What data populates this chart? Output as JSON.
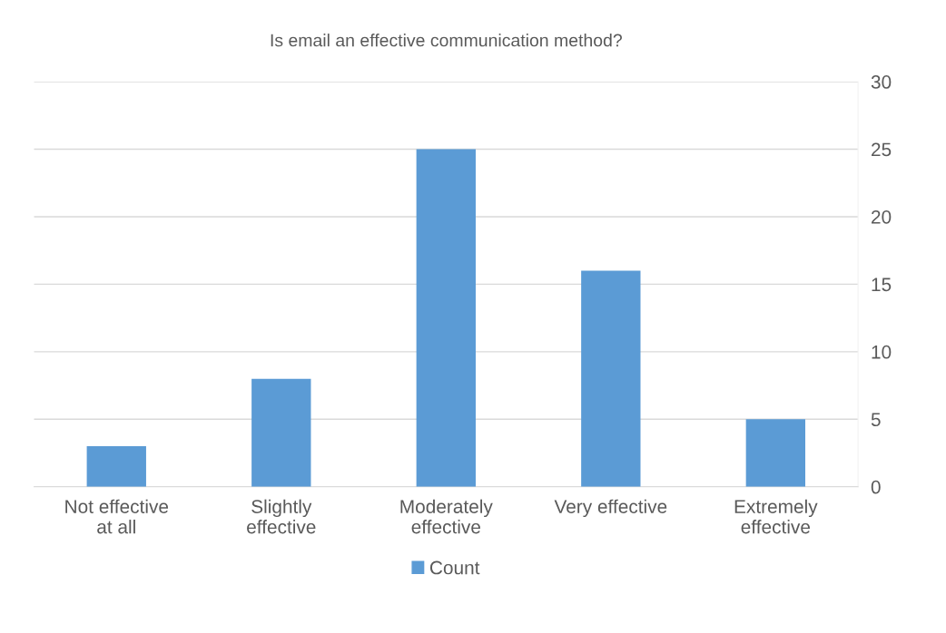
{
  "chart_data": {
    "type": "bar",
    "title": "Is email an effective communication method?",
    "categories": [
      "Not effective\nat all",
      "Slightly\neffective",
      "Moderately\neffective",
      "Very effective",
      "Extremely\neffective"
    ],
    "series": [
      {
        "name": "Count",
        "color": "#5b9bd5",
        "values": [
          3,
          8,
          25,
          16,
          5
        ]
      }
    ],
    "ylim": [
      0,
      30
    ],
    "yticks": [
      0,
      5,
      10,
      15,
      20,
      25,
      30
    ],
    "grid": "y",
    "legend": "bottom"
  }
}
